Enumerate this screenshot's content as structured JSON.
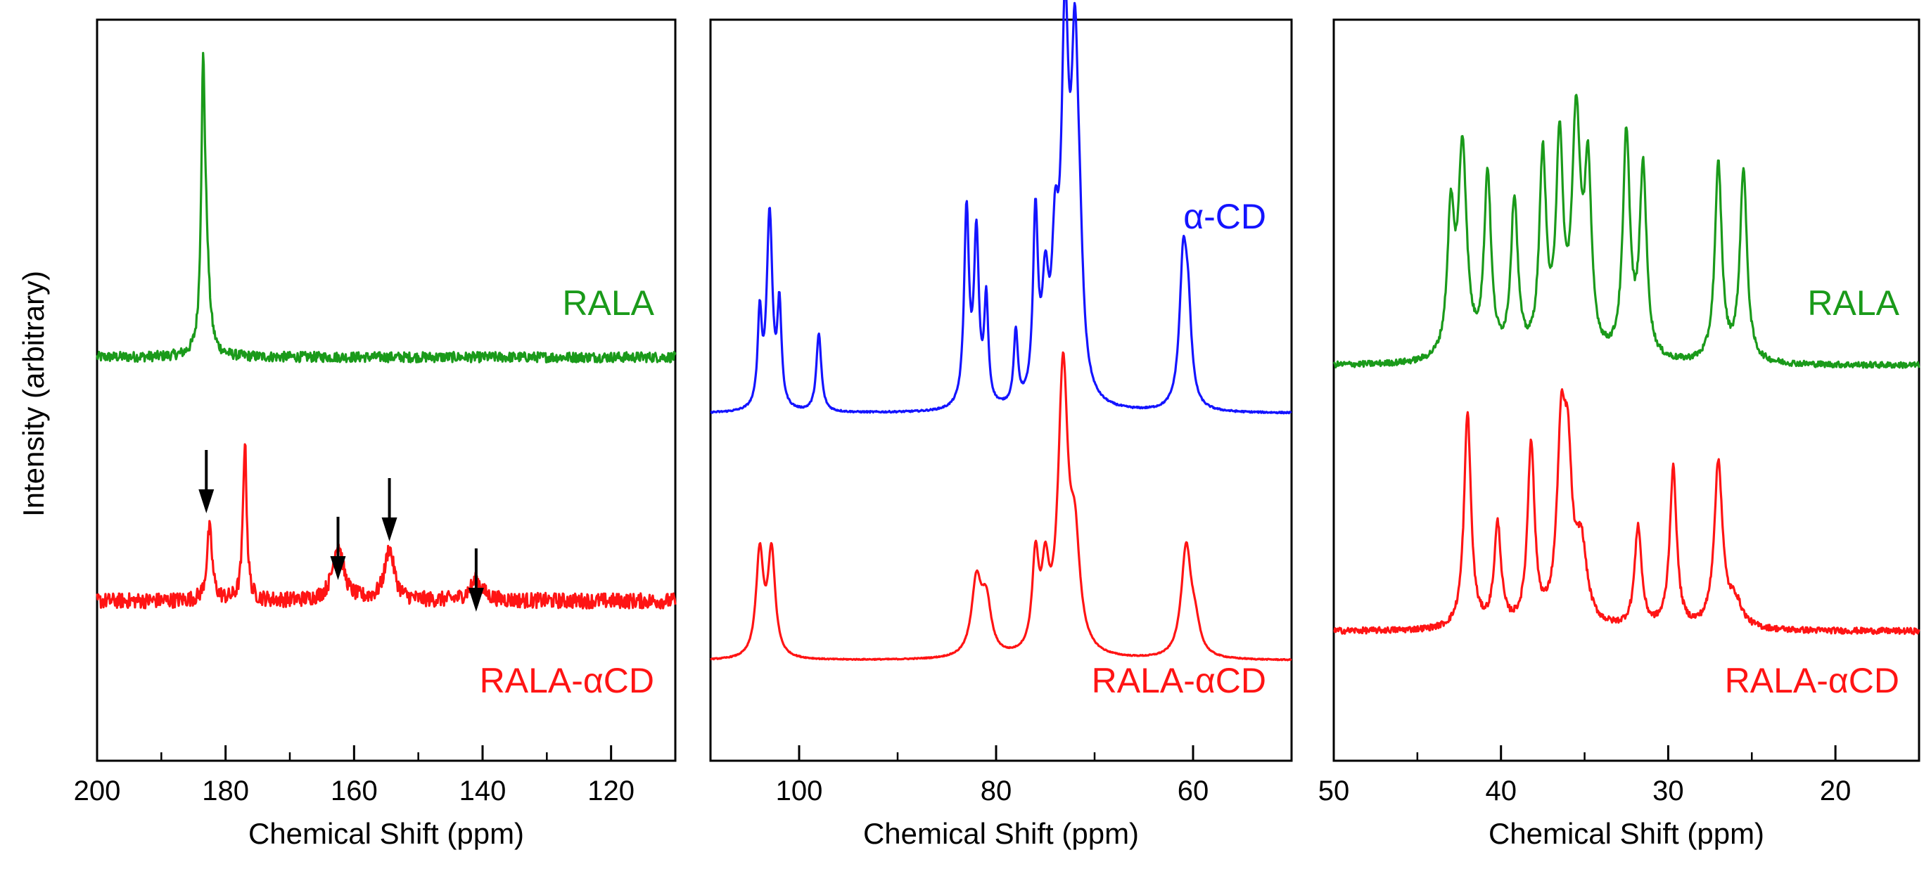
{
  "ylabel": "Intensity (arbitrary)",
  "colors": {
    "green": "#1a9a1a",
    "blue": "#1414ff",
    "red": "#ff1414",
    "arrow": "#000000"
  },
  "chart_data": [
    {
      "type": "line",
      "xlabel": "Chemical Shift (ppm)",
      "xlim": [
        200,
        110
      ],
      "xticks": [
        "200",
        "180",
        "160",
        "140",
        "120"
      ],
      "xtick_values": [
        200,
        180,
        160,
        140,
        120
      ],
      "series": [
        {
          "name": "RALA",
          "color": "green",
          "baseline": 0.0,
          "noise": 0.02,
          "peaks": [
            [
              183.5,
              1.0,
              0.35
            ],
            [
              183.0,
              0.3,
              0.6
            ]
          ]
        },
        {
          "name": "RALA-αCD",
          "color": "red",
          "baseline": -0.95,
          "noise": 0.03,
          "peaks": [
            [
              182.5,
              0.28,
              0.5
            ],
            [
              177.0,
              0.62,
              0.35
            ],
            [
              162.5,
              0.22,
              1.0
            ],
            [
              154.5,
              0.2,
              0.9
            ],
            [
              141.0,
              0.08,
              1.2
            ]
          ]
        }
      ],
      "annotations": {
        "arrows_ppm": [
          183,
          162.5,
          154.5,
          141
        ]
      }
    },
    {
      "type": "line",
      "xlabel": "Chemical Shift (ppm)",
      "xlim": [
        109,
        50
      ],
      "xticks": [
        "100",
        "80",
        "60"
      ],
      "xtick_values": [
        100,
        80,
        60
      ],
      "series": [
        {
          "name": "α-CD",
          "color": "blue",
          "baseline": 0.0,
          "noise": 0.003,
          "peaks": [
            [
              104,
              0.35,
              0.25
            ],
            [
              103,
              0.75,
              0.35
            ],
            [
              102,
              0.38,
              0.25
            ],
            [
              98,
              0.3,
              0.3
            ],
            [
              83,
              0.75,
              0.3
            ],
            [
              82,
              0.65,
              0.3
            ],
            [
              81,
              0.4,
              0.25
            ],
            [
              78,
              0.28,
              0.25
            ],
            [
              76,
              0.7,
              0.3
            ],
            [
              75,
              0.4,
              0.4
            ],
            [
              74,
              0.5,
              0.4
            ],
            [
              73,
              1.35,
              0.45
            ],
            [
              72,
              1.2,
              0.45
            ],
            [
              71.5,
              0.3,
              0.4
            ],
            [
              61,
              0.55,
              0.45
            ],
            [
              60.5,
              0.3,
              0.4
            ]
          ]
        },
        {
          "name": "RALA-αCD",
          "color": "red",
          "baseline": -0.95,
          "noise": 0.002,
          "peaks": [
            [
              104,
              0.4,
              0.45
            ],
            [
              102.8,
              0.4,
              0.45
            ],
            [
              82,
              0.28,
              0.6
            ],
            [
              81,
              0.2,
              0.6
            ],
            [
              76,
              0.35,
              0.4
            ],
            [
              75,
              0.28,
              0.45
            ],
            [
              73.2,
              1.08,
              0.6
            ],
            [
              72,
              0.38,
              0.6
            ],
            [
              60.7,
              0.42,
              0.6
            ],
            [
              59.8,
              0.1,
              0.6
            ]
          ]
        }
      ]
    },
    {
      "type": "line",
      "xlabel": "Chemical Shift (ppm)",
      "xlim": [
        50,
        15
      ],
      "xticks": [
        "50",
        "40",
        "30",
        "20"
      ],
      "xtick_values": [
        50,
        40,
        30,
        20
      ],
      "series": [
        {
          "name": "RALA",
          "color": "green",
          "baseline": 0.0,
          "noise": 0.012,
          "peaks": [
            [
              43,
              0.55,
              0.25
            ],
            [
              42.3,
              0.82,
              0.3
            ],
            [
              40.8,
              0.72,
              0.25
            ],
            [
              39.2,
              0.62,
              0.25
            ],
            [
              37.5,
              0.78,
              0.25
            ],
            [
              36.5,
              0.82,
              0.25
            ],
            [
              35.5,
              0.92,
              0.3
            ],
            [
              34.8,
              0.7,
              0.25
            ],
            [
              32.5,
              0.88,
              0.25
            ],
            [
              31.5,
              0.75,
              0.25
            ],
            [
              27,
              0.78,
              0.25
            ],
            [
              25.5,
              0.76,
              0.25
            ]
          ]
        },
        {
          "name": "RALA-αCD",
          "color": "red",
          "baseline": -1.05,
          "noise": 0.012,
          "peaks": [
            [
              42,
              0.85,
              0.25
            ],
            [
              40.2,
              0.4,
              0.25
            ],
            [
              38.2,
              0.72,
              0.25
            ],
            [
              36.4,
              0.68,
              0.3
            ],
            [
              36,
              0.55,
              0.3
            ],
            [
              35.2,
              0.3,
              0.4
            ],
            [
              31.8,
              0.4,
              0.25
            ],
            [
              29.7,
              0.63,
              0.25
            ],
            [
              27,
              0.65,
              0.3
            ],
            [
              26,
              0.1,
              0.5
            ]
          ]
        }
      ]
    }
  ]
}
